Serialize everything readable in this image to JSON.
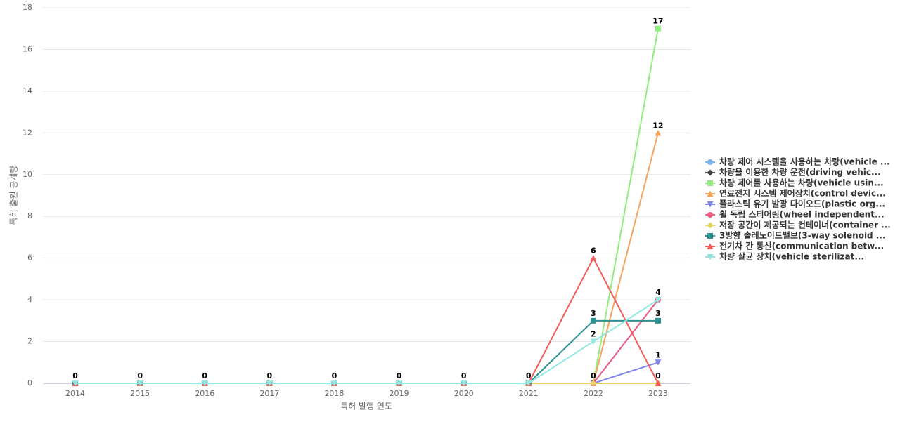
{
  "chart_data": {
    "type": "line",
    "x_label": "특허 발행 연도",
    "y_label": "특허 출원 공개량",
    "categories": [
      "2014",
      "2015",
      "2016",
      "2017",
      "2018",
      "2019",
      "2020",
      "2021",
      "2022",
      "2023"
    ],
    "ylim": [
      0,
      18
    ],
    "yticks": [
      0,
      2,
      4,
      6,
      8,
      10,
      12,
      14,
      16,
      18
    ],
    "grid": true,
    "legend": "right",
    "series": [
      {
        "name": "차량 제어 시스템을 사용하는 차량(vehicle ...",
        "color": "#7cb5ec",
        "marker": "circle",
        "values": [
          0,
          0,
          0,
          0,
          0,
          0,
          0,
          0,
          0,
          4
        ]
      },
      {
        "name": "차량을 이용한 차량 운전(driving vehic...",
        "color": "#434348",
        "marker": "diamond",
        "values": [
          0,
          0,
          0,
          0,
          0,
          0,
          0,
          0,
          0,
          0
        ]
      },
      {
        "name": "차량 제어를 사용하는 차량(vehicle usin...",
        "color": "#90ed7d",
        "marker": "square",
        "values": [
          0,
          0,
          0,
          0,
          0,
          0,
          0,
          0,
          0,
          17
        ]
      },
      {
        "name": "연료전지 시스템 제어장치(control devic...",
        "color": "#f7a35c",
        "marker": "triangle",
        "values": [
          0,
          0,
          0,
          0,
          0,
          0,
          0,
          0,
          0,
          12
        ]
      },
      {
        "name": "플라스틱 유기 발광 다이오드(plastic org...",
        "color": "#8085e9",
        "marker": "triangle-down",
        "values": [
          0,
          0,
          0,
          0,
          0,
          0,
          0,
          0,
          0,
          1
        ]
      },
      {
        "name": "휠 독립 스티어링(wheel independent...",
        "color": "#f15c80",
        "marker": "circle",
        "values": [
          0,
          0,
          0,
          0,
          0,
          0,
          0,
          0,
          0,
          4
        ]
      },
      {
        "name": "저장 공간이 제공되는 컨테이너(container ...",
        "color": "#e4d354",
        "marker": "diamond",
        "values": [
          0,
          0,
          0,
          0,
          0,
          0,
          0,
          0,
          0,
          0
        ]
      },
      {
        "name": "3방향 솔레노이드밸브(3-way solenoid ...",
        "color": "#2b908f",
        "marker": "square",
        "values": [
          0,
          0,
          0,
          0,
          0,
          0,
          0,
          0,
          3,
          3
        ]
      },
      {
        "name": "전기차 간 통신(communication betw...",
        "color": "#f45b5b",
        "marker": "triangle",
        "values": [
          0,
          0,
          0,
          0,
          0,
          0,
          0,
          0,
          6,
          0
        ]
      },
      {
        "name": "차량 살균 장치(vehicle sterilizat...",
        "color": "#91e8e1",
        "marker": "triangle-down",
        "values": [
          0,
          0,
          0,
          0,
          0,
          0,
          0,
          0,
          2,
          4
        ]
      }
    ]
  }
}
